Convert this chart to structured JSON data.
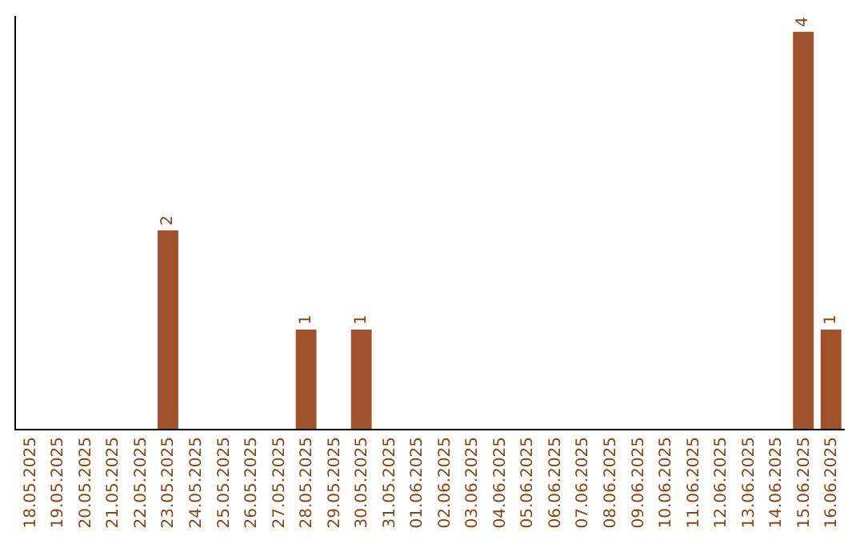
{
  "chart_data": {
    "type": "bar",
    "categories": [
      "18.05.2025",
      "19.05.2025",
      "20.05.2025",
      "21.05.2025",
      "22.05.2025",
      "23.05.2025",
      "24.05.2025",
      "25.05.2025",
      "26.05.2025",
      "27.05.2025",
      "28.05.2025",
      "29.05.2025",
      "30.05.2025",
      "31.05.2025",
      "01.06.2025",
      "02.06.2025",
      "03.06.2025",
      "04.06.2025",
      "05.06.2025",
      "06.06.2025",
      "07.06.2025",
      "08.06.2025",
      "09.06.2025",
      "10.06.2025",
      "11.06.2025",
      "12.06.2025",
      "13.06.2025",
      "14.06.2025",
      "15.06.2025",
      "16.06.2025"
    ],
    "values": [
      0,
      0,
      0,
      0,
      0,
      2,
      0,
      0,
      0,
      0,
      1,
      0,
      1,
      0,
      0,
      0,
      0,
      0,
      0,
      0,
      0,
      0,
      0,
      0,
      0,
      0,
      0,
      0,
      4,
      1
    ],
    "value_labels": [
      null,
      null,
      null,
      null,
      null,
      "2",
      null,
      null,
      null,
      null,
      "1",
      null,
      "1",
      null,
      null,
      null,
      null,
      null,
      null,
      null,
      null,
      null,
      null,
      null,
      null,
      null,
      null,
      null,
      "4",
      "1"
    ],
    "color": "#a0522d",
    "ylim": [
      0,
      4.16
    ],
    "tick_labels": "x"
  }
}
